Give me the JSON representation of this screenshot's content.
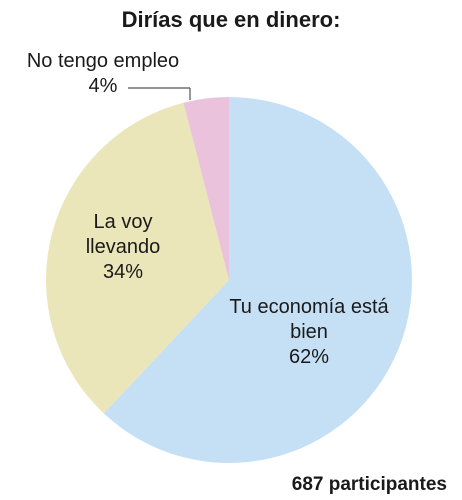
{
  "chart_data": {
    "type": "pie",
    "title": "Dirías que en dinero:",
    "footer": "687 participantes",
    "slices": [
      {
        "label_lines": [
          "Tu economía está",
          "bien"
        ],
        "value_label": "62%",
        "value": 62,
        "color": "#c5e0f5"
      },
      {
        "label_lines": [
          "La voy",
          "llevando"
        ],
        "value_label": "34%",
        "value": 34,
        "color": "#ebe6b9"
      },
      {
        "label_lines": [
          "No tengo empleo"
        ],
        "value_label": "4%",
        "value": 4,
        "color": "#eac2db"
      }
    ]
  }
}
